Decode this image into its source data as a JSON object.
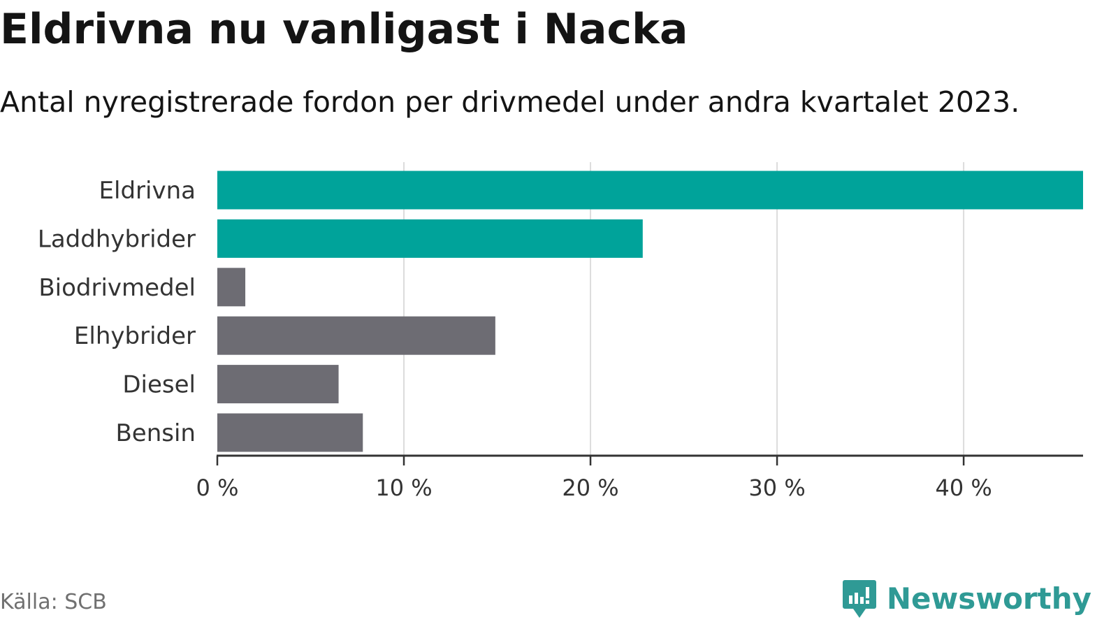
{
  "header": {
    "title": "Eldrivna nu vanligast i Nacka",
    "subtitle": "Antal nyregistrerade fordon per drivmedel under andra kvartalet 2023."
  },
  "chart_data": {
    "type": "bar",
    "orientation": "horizontal",
    "categories": [
      "Eldrivna",
      "Laddhybrider",
      "Biodrivmedel",
      "Elhybrider",
      "Diesel",
      "Bensin"
    ],
    "values": [
      46.4,
      22.8,
      1.5,
      14.9,
      6.5,
      7.8
    ],
    "unit": "%",
    "xlim": [
      0,
      46.4
    ],
    "xticks": [
      0,
      10,
      20,
      30,
      40
    ],
    "xtick_labels": [
      "0 %",
      "10 %",
      "20 %",
      "30 %",
      "40 %"
    ],
    "grid": true,
    "bar_colors": [
      "#00a39a",
      "#00a39a",
      "#6d6c73",
      "#6d6c73",
      "#6d6c73",
      "#6d6c73"
    ]
  },
  "footer": {
    "source": "Källa: SCB",
    "brand": "Newsworthy",
    "brand_icon": "newsworthy-logo-icon",
    "brand_color": "#2f9a95"
  }
}
